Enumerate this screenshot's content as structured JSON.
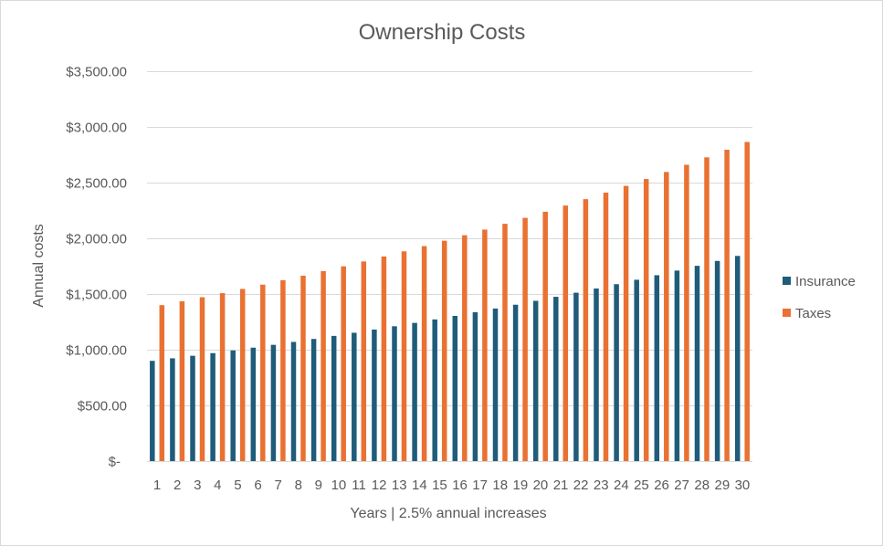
{
  "chart_data": {
    "type": "bar",
    "title": "Ownership Costs",
    "xlabel": "Years | 2.5% annual increases",
    "ylabel": "Annual costs",
    "ylim": [
      0,
      3500
    ],
    "yticks": [
      0,
      500,
      1000,
      1500,
      2000,
      2500,
      3000,
      3500
    ],
    "ytick_labels": [
      "$-",
      "$500.00",
      "$1,000.00",
      "$1,500.00",
      "$2,000.00",
      "$2,500.00",
      "$3,000.00",
      "$3,500.00"
    ],
    "grid": true,
    "legend_position": "right",
    "categories": [
      "1",
      "2",
      "3",
      "4",
      "5",
      "6",
      "7",
      "8",
      "9",
      "10",
      "11",
      "12",
      "13",
      "14",
      "15",
      "16",
      "17",
      "18",
      "19",
      "20",
      "21",
      "22",
      "23",
      "24",
      "25",
      "26",
      "27",
      "28",
      "29",
      "30"
    ],
    "series": [
      {
        "name": "Insurance",
        "color": "#1f5c7a",
        "values": [
          900,
          922.5,
          945.56,
          969.2,
          993.43,
          1018.27,
          1043.72,
          1069.82,
          1096.56,
          1123.98,
          1152.08,
          1180.88,
          1210.4,
          1240.66,
          1271.68,
          1303.47,
          1336.06,
          1369.46,
          1403.69,
          1438.79,
          1474.76,
          1511.62,
          1549.42,
          1588.15,
          1627.85,
          1668.55,
          1710.27,
          1753.02,
          1796.85,
          1841.77
        ]
      },
      {
        "name": "Taxes",
        "color": "#e97132",
        "values": [
          1400,
          1435,
          1470.88,
          1507.65,
          1545.34,
          1583.97,
          1623.57,
          1664.16,
          1705.77,
          1748.41,
          1792.12,
          1836.92,
          1882.85,
          1929.92,
          1978.16,
          2027.62,
          2078.31,
          2130.27,
          2183.52,
          2238.11,
          2294.06,
          2351.42,
          2410.2,
          2470.46,
          2532.22,
          2595.52,
          2660.41,
          2726.92,
          2795.09,
          2864.97
        ]
      }
    ]
  }
}
